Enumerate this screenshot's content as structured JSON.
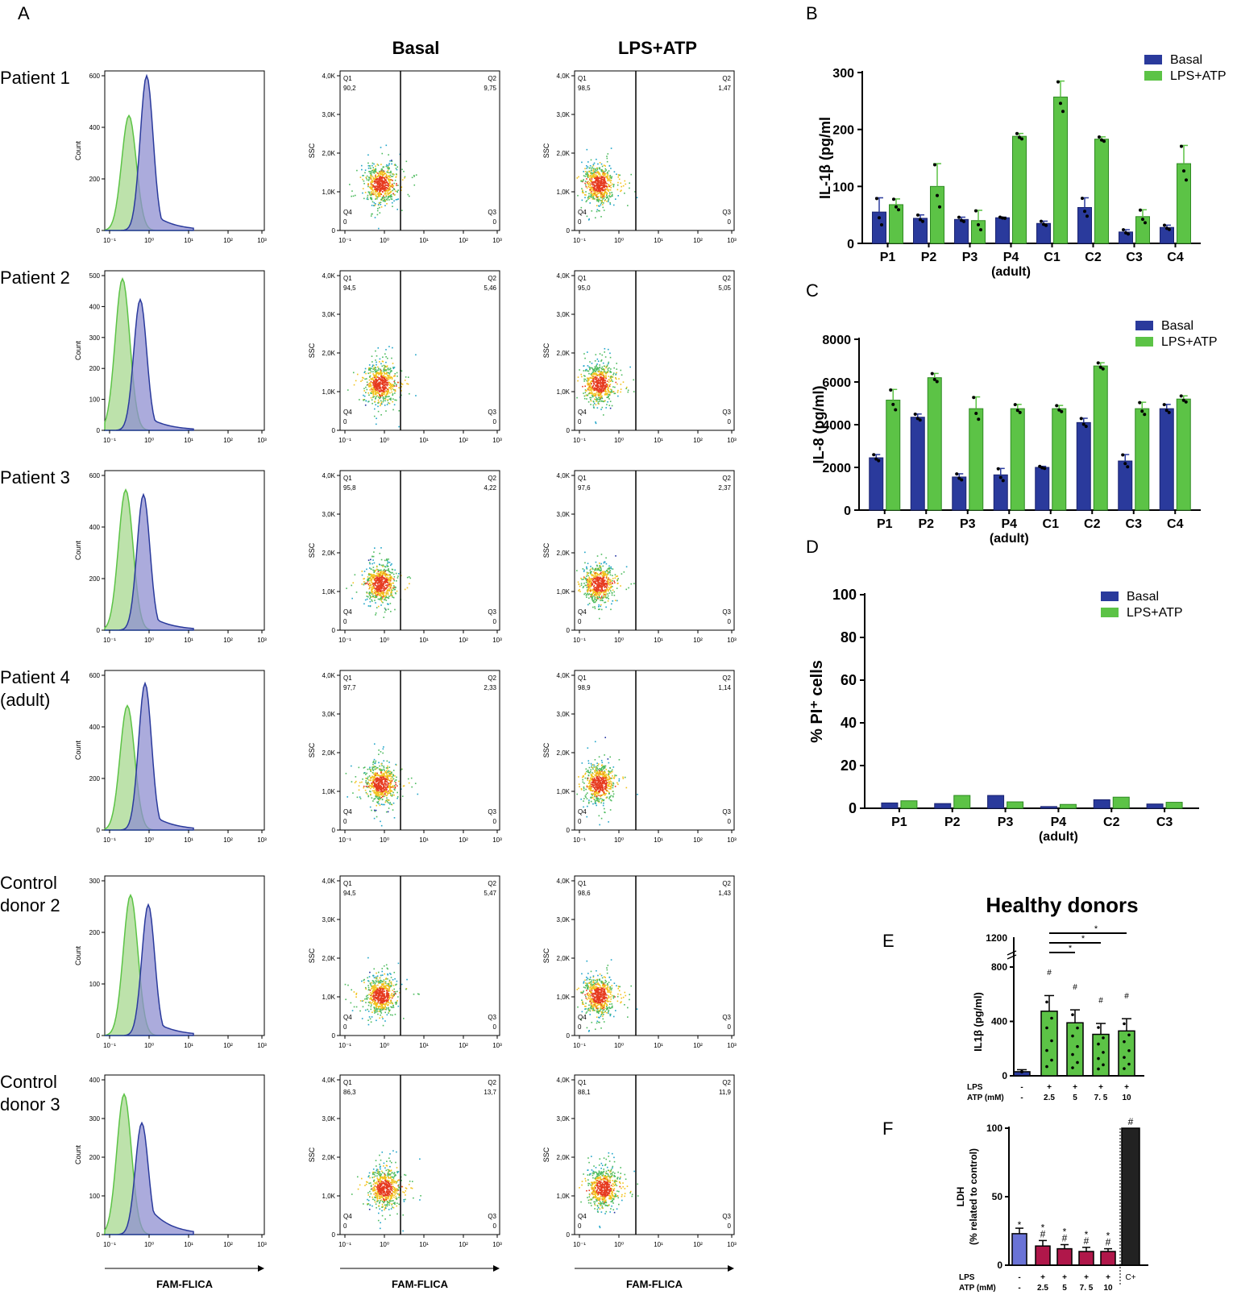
{
  "panel_letters": {
    "A": "A",
    "B": "B",
    "C": "C",
    "D": "D",
    "E": "E",
    "F": "F"
  },
  "colors": {
    "basal": "#2a3a9c",
    "lps_atp": "#5cc346",
    "green_fill": "#b6dfa2",
    "purple_fill": "#8f8fd0",
    "teal_fill": "#5f9fd6",
    "crimson": "#b0174a",
    "lavender": "#6a73d6",
    "black": "#222222"
  },
  "panel_a": {
    "col_titles": [
      "Basal",
      "LPS+ATP"
    ],
    "rows": [
      {
        "label_lines": [
          "Patient 1"
        ],
        "yticks": [
          "600",
          "400",
          "200",
          "0"
        ],
        "basal": {
          "q1": "90,2",
          "q2": "9,75"
        },
        "lps": {
          "q1": "98,5",
          "q2": "1,47"
        }
      },
      {
        "label_lines": [
          "Patient 2"
        ],
        "yticks": [
          "500",
          "400",
          "300",
          "200",
          "100",
          "0"
        ],
        "basal": {
          "q1": "94,5",
          "q2": "5,46"
        },
        "lps": {
          "q1": "95,0",
          "q2": "5,05"
        }
      },
      {
        "label_lines": [
          "Patient 3"
        ],
        "yticks": [
          "600",
          "400",
          "200",
          "0"
        ],
        "basal": {
          "q1": "95,8",
          "q2": "4,22"
        },
        "lps": {
          "q1": "97,6",
          "q2": "2,37"
        }
      },
      {
        "label_lines": [
          "Patient 4",
          "(adult)"
        ],
        "yticks": [
          "600",
          "400",
          "200",
          "0"
        ],
        "basal": {
          "q1": "97,7",
          "q2": "2,33"
        },
        "lps": {
          "q1": "98,9",
          "q2": "1,14"
        }
      },
      {
        "label_lines": [
          "Control",
          "donor 2"
        ],
        "yticks": [
          "300",
          "200",
          "100",
          "0"
        ],
        "basal": {
          "q1": "94,5",
          "q2": "5,47"
        },
        "lps": {
          "q1": "98,6",
          "q2": "1,43"
        }
      },
      {
        "label_lines": [
          "Control",
          "donor 3"
        ],
        "yticks": [
          "400",
          "300",
          "200",
          "100",
          "0"
        ],
        "basal": {
          "q1": "86,3",
          "q2": "13,7"
        },
        "lps": {
          "q1": "88,1",
          "q2": "11,9"
        }
      }
    ],
    "hist_ylabel": "Count",
    "dot_ylabel": "SSC",
    "dot_yticks": [
      "4,0K",
      "3,0K",
      "2,0K",
      "1,0K",
      "0"
    ],
    "xticks": [
      "10⁻¹",
      "10⁰",
      "10¹",
      "10²",
      "10³"
    ],
    "q1_label": "Q1",
    "q2_label": "Q2",
    "q3_label": "Q3",
    "q4_label": "Q4",
    "q3_value": "0",
    "q4_value": "0",
    "xlabel": "FAM-FLICA"
  },
  "chart_data": [
    {
      "id": "B",
      "type": "bar",
      "ylabel": "IL-1β (pg/ml",
      "ylim": [
        0,
        300
      ],
      "yticks": [
        0,
        100,
        200,
        300
      ],
      "categories": [
        "P1",
        "P2",
        "P3",
        "P4",
        "C1",
        "C2",
        "C3",
        "C4"
      ],
      "sublabel": {
        "category": "P4",
        "text": "(adult)"
      },
      "legend": [
        "Basal",
        "LPS+ATP"
      ],
      "series": [
        {
          "name": "Basal",
          "values": [
            55,
            44,
            42,
            45,
            35,
            63,
            20,
            28
          ],
          "err": [
            25,
            6,
            4,
            1,
            4,
            17,
            4,
            4
          ]
        },
        {
          "name": "LPS+ATP",
          "values": [
            68,
            100,
            40,
            188,
            257,
            183,
            47,
            140
          ],
          "err": [
            10,
            40,
            18,
            5,
            28,
            4,
            12,
            32
          ]
        }
      ]
    },
    {
      "id": "C",
      "type": "bar",
      "ylabel": "IL-8 (pg/ml)",
      "ylim": [
        0,
        8000
      ],
      "yticks": [
        0,
        2000,
        4000,
        6000,
        8000
      ],
      "categories": [
        "P1",
        "P2",
        "P3",
        "P4",
        "C1",
        "C2",
        "C3",
        "C4"
      ],
      "sublabel": {
        "category": "P4",
        "text": "(adult)"
      },
      "legend": [
        "Basal",
        "LPS+ATP"
      ],
      "series": [
        {
          "name": "Basal",
          "values": [
            2450,
            4350,
            1550,
            1650,
            2000,
            4100,
            2300,
            4750
          ],
          "err": [
            150,
            150,
            150,
            300,
            50,
            200,
            300,
            200
          ]
        },
        {
          "name": "LPS+ATP",
          "values": [
            5150,
            6200,
            4750,
            4750,
            4750,
            6750,
            4750,
            5200
          ],
          "err": [
            500,
            200,
            550,
            200,
            150,
            150,
            300,
            150
          ]
        }
      ]
    },
    {
      "id": "D",
      "type": "bar",
      "ylabel": "% PI⁺ cells",
      "ylim": [
        0,
        100
      ],
      "yticks": [
        0,
        20,
        40,
        60,
        80,
        100
      ],
      "categories": [
        "P1",
        "P2",
        "P3",
        "P4",
        "C2",
        "C3"
      ],
      "sublabel": {
        "category": "P4",
        "text": "(adult)"
      },
      "legend": [
        "Basal",
        "LPS+ATP"
      ],
      "series": [
        {
          "name": "Basal",
          "values": [
            2.5,
            2.2,
            6,
            0.8,
            4,
            2
          ]
        },
        {
          "name": "LPS+ATP",
          "values": [
            3.5,
            6,
            3,
            1.8,
            5.2,
            2.8
          ]
        }
      ]
    },
    {
      "id": "E",
      "type": "bar",
      "title": "Healthy donors",
      "ylabel": "IL1β (pg/ml)",
      "ylim": [
        0,
        800
      ],
      "yticks": [
        0,
        400,
        800
      ],
      "break_tick": "1200",
      "row_labels": [
        "LPS",
        "ATP (mM)"
      ],
      "lps": [
        "-",
        "+",
        "+",
        "+",
        "+"
      ],
      "atp": [
        "-",
        "2.5",
        "5",
        "7. 5",
        "10"
      ],
      "values": [
        30,
        475,
        390,
        305,
        330
      ],
      "err": [
        15,
        115,
        95,
        80,
        90
      ],
      "hash": [
        "",
        "#",
        "#",
        "#",
        "#"
      ],
      "significance": [
        "*",
        "*",
        "*"
      ]
    },
    {
      "id": "F",
      "type": "bar",
      "ylabel_lines": [
        "LDH",
        "(% related to control)"
      ],
      "ylim": [
        0,
        100
      ],
      "yticks": [
        0,
        50,
        100
      ],
      "row_labels": [
        "LPS",
        "ATP (mM)"
      ],
      "lps": [
        "-",
        "+",
        "+",
        "+",
        "+",
        ""
      ],
      "atp": [
        "-",
        "2.5",
        "5",
        "7. 5",
        "10",
        ""
      ],
      "categories": [
        "",
        "",
        "",
        "",
        "",
        "C+"
      ],
      "values": [
        23,
        14,
        12,
        10,
        10,
        100
      ],
      "err": [
        4,
        4,
        3,
        3,
        2,
        0
      ],
      "star": [
        "*",
        "*",
        "*",
        "*",
        "*",
        ""
      ],
      "hash": [
        "",
        "#",
        "#",
        "#",
        "#",
        "#"
      ]
    }
  ]
}
